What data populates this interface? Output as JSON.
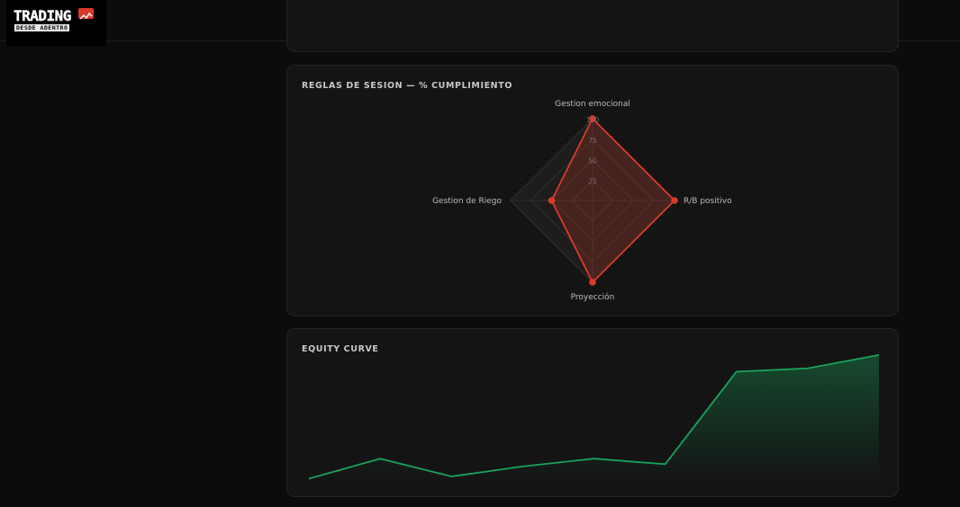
{
  "header": {
    "logo": {
      "word": "TRADING",
      "subtitle": "DESDE ADENTRO"
    }
  },
  "radar_card": {
    "title": "REGLAS DE SESION — % CUMPLIMIENTO"
  },
  "equity_card": {
    "title": "EQUITY CURVE"
  },
  "colors": {
    "radar_series": "#d93a2b",
    "equity_line": "#19a35a",
    "card_bg": "#141414"
  },
  "chart_data": [
    {
      "type": "radar",
      "title": "REGLAS DE SESION — % CUMPLIMIENTO",
      "axes": [
        "Gestion emocional",
        "R/B positivo",
        "Proyección",
        "Gestion de Riego"
      ],
      "ticks": [
        "25",
        "50",
        "75",
        "100"
      ],
      "rmax": 100,
      "series": [
        {
          "values": [
            100,
            100,
            100,
            50
          ]
        }
      ],
      "grid": true
    },
    {
      "type": "area",
      "title": "EQUITY CURVE",
      "values": [
        2,
        20,
        4,
        13,
        20,
        15,
        98,
        101,
        113
      ],
      "ylim": [
        0,
        125
      ],
      "grid": false
    }
  ]
}
